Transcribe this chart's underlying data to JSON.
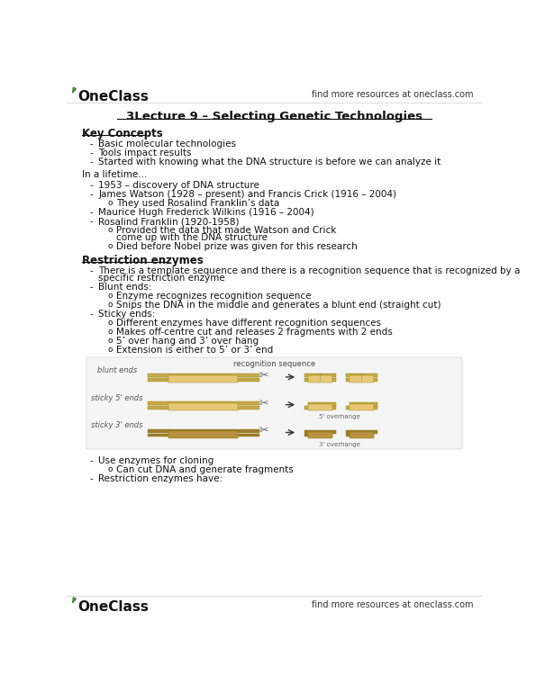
{
  "bg_color": "#ffffff",
  "header_text": "find more resources at oneclass.com",
  "title": "3Lecture 9 – Selecting Genetic Technologies",
  "section1": "Key Concepts",
  "key_concepts": [
    "Basic molecular technologies",
    "Tools impact results",
    "Started with knowing what the DNA structure is before we can analyze it"
  ],
  "lifetime_header": "In a lifetime...",
  "lifetime_bullets": [
    "1953 – discovery of DNA structure",
    "James Watson (1928 – present) and Francis Crick (1916 – 2004)",
    "Maurice Hugh Frederick Wilkins (1916 – 2004)",
    "Rosalind Franklin (1920-1958)"
  ],
  "watson_sub": "They used Rosalind Franklin’s data",
  "franklin_subs": [
    "Provided the data that made Watson and Crick come up with the DNA structure",
    "Died before Nobel prize was given for this research"
  ],
  "section2": "Restriction enzymes",
  "blunt_subs": [
    "Enzyme recognizes recognition sequence",
    "Snips the DNA in the middle and generates a blunt end (straight cut)"
  ],
  "sticky_subs": [
    "Different enzymes have different recognition sequences",
    "Makes off-centre cut and releases 2 fragments with 2 ends",
    "5’ over hang and 3’ over hang",
    "Extension is either to 5’ or 3’ end"
  ],
  "footer_text": "find more resources at oneclass.com",
  "oneclass_color": "#4a8c3f",
  "text_color": "#111111",
  "sub_text_color": "#333333",
  "title_fs": 9.5,
  "body_fs": 7.5,
  "section_fs": 8.5,
  "header_fs": 7.0,
  "logo_fs": 11.0
}
